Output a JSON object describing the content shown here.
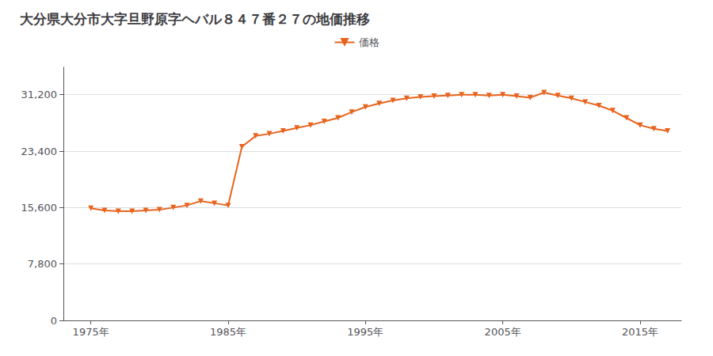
{
  "chart_data": {
    "type": "line",
    "title": "大分県大分市大字旦野原字ヘバル８４７番２７の地価推移",
    "series": [
      {
        "name": "価格",
        "color": "#e8641e",
        "marker": "triangle_down",
        "values": [
          15500,
          15200,
          15100,
          15100,
          15200,
          15300,
          15600,
          15900,
          16500,
          16200,
          15900,
          24000,
          25500,
          25800,
          26200,
          26600,
          27000,
          27500,
          28000,
          28800,
          29500,
          30000,
          30400,
          30700,
          30900,
          31000,
          31100,
          31200,
          31200,
          31100,
          31200,
          31000,
          30800,
          31500,
          31100,
          30700,
          30200,
          29700,
          29000,
          28000,
          27000,
          26500,
          26200
        ]
      }
    ],
    "x": [
      1975,
      1976,
      1977,
      1978,
      1979,
      1980,
      1981,
      1982,
      1983,
      1984,
      1985,
      1986,
      1987,
      1988,
      1989,
      1990,
      1991,
      1992,
      1993,
      1994,
      1995,
      1996,
      1997,
      1998,
      1999,
      2000,
      2001,
      2002,
      2003,
      2004,
      2005,
      2006,
      2007,
      2008,
      2009,
      2010,
      2011,
      2012,
      2013,
      2014,
      2015,
      2016,
      2017
    ],
    "xlim": [
      1973,
      2018
    ],
    "xticks": [
      {
        "value": 1975,
        "label": "1975年"
      },
      {
        "value": 1985,
        "label": "1985年"
      },
      {
        "value": 1995,
        "label": "1995年"
      },
      {
        "value": 2005,
        "label": "2005年"
      },
      {
        "value": 2015,
        "label": "2015年"
      }
    ],
    "ylim": [
      0,
      35000
    ],
    "yticks": [
      0,
      {
        "value": 7800,
        "label": "7,800"
      },
      {
        "value": 15600,
        "label": "15,600"
      },
      {
        "value": 23400,
        "label": "23,400"
      },
      {
        "value": 31200,
        "label": "31,200"
      }
    ],
    "grid": true,
    "legend": "top"
  }
}
